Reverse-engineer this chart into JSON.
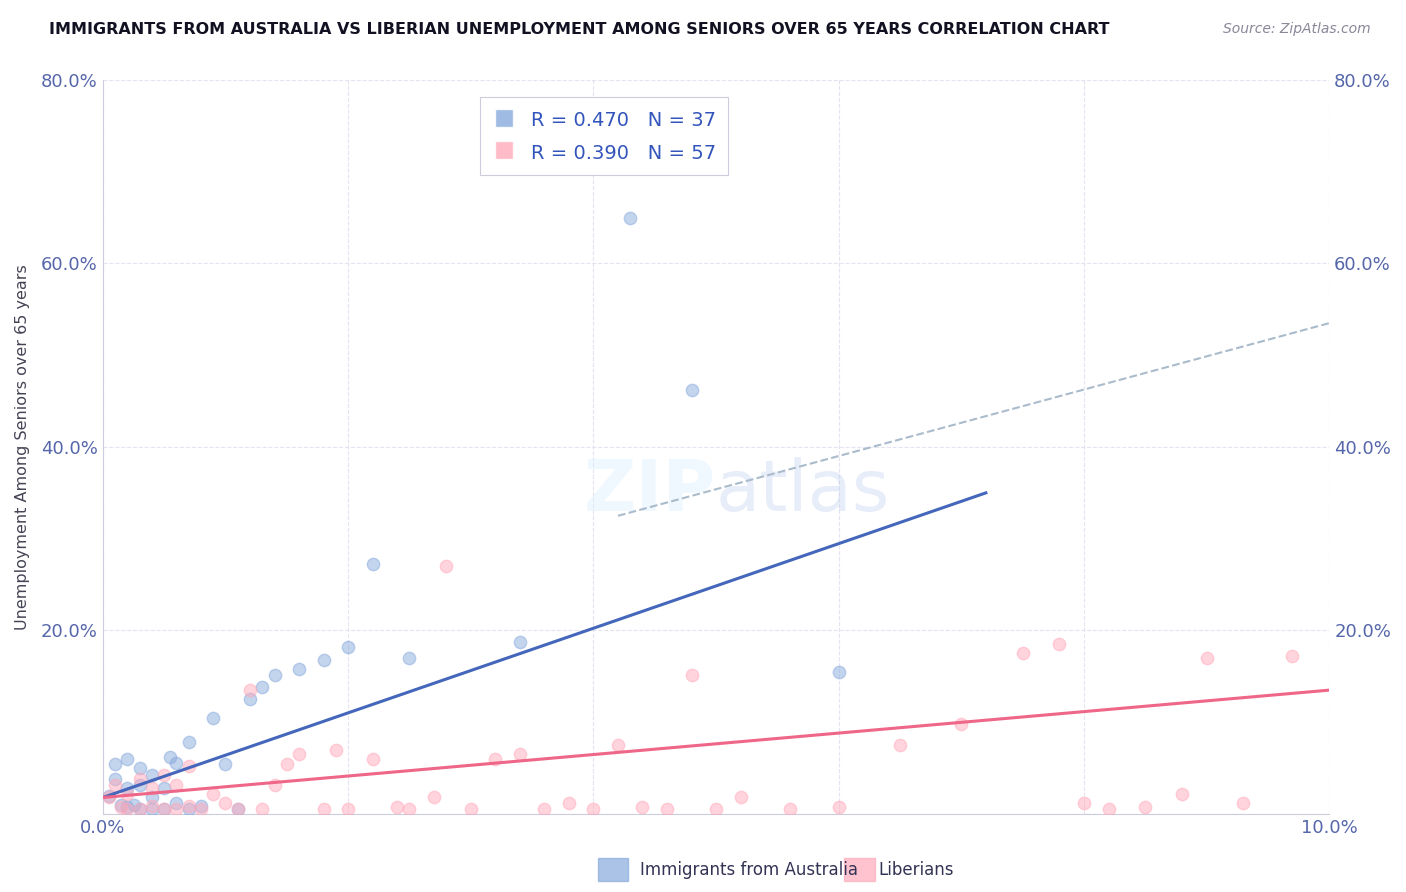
{
  "title": "IMMIGRANTS FROM AUSTRALIA VS LIBERIAN UNEMPLOYMENT AMONG SENIORS OVER 65 YEARS CORRELATION CHART",
  "source": "Source: ZipAtlas.com",
  "ylabel": "Unemployment Among Seniors over 65 years",
  "legend_label1": "Immigrants from Australia",
  "legend_label2": "Liberians",
  "R1": 0.47,
  "N1": 37,
  "R2": 0.39,
  "N2": 57,
  "color_blue_scatter": "#88AADD",
  "color_pink_scatter": "#FFAABB",
  "color_blue_line": "#4466BB",
  "color_pink_line": "#EE6688",
  "color_dashed": "#AABBCC",
  "xlim": [
    0.0,
    0.1
  ],
  "ylim": [
    0.0,
    0.8
  ],
  "x_ticks": [
    0.0,
    0.02,
    0.04,
    0.06,
    0.08,
    0.1
  ],
  "x_tick_labels": [
    "0.0%",
    "",
    "",
    "",
    "",
    "10.0%"
  ],
  "y_ticks": [
    0.0,
    0.2,
    0.4,
    0.6,
    0.8
  ],
  "y_tick_labels_left": [
    "",
    "20.0%",
    "40.0%",
    "60.0%",
    "80.0%"
  ],
  "y_tick_labels_right": [
    "",
    "20.0%",
    "40.0%",
    "60.0%",
    "80.0%"
  ],
  "blue_line_x": [
    0.0,
    0.072
  ],
  "blue_line_y": [
    0.018,
    0.35
  ],
  "pink_line_x": [
    0.0,
    0.1
  ],
  "pink_line_y": [
    0.018,
    0.135
  ],
  "dashed_line_x": [
    0.042,
    0.1
  ],
  "dashed_line_y": [
    0.325,
    0.535
  ],
  "blue_points_x": [
    0.0005,
    0.001,
    0.001,
    0.0015,
    0.002,
    0.002,
    0.002,
    0.0025,
    0.003,
    0.003,
    0.003,
    0.004,
    0.004,
    0.004,
    0.005,
    0.005,
    0.0055,
    0.006,
    0.006,
    0.007,
    0.007,
    0.008,
    0.009,
    0.01,
    0.011,
    0.012,
    0.013,
    0.014,
    0.016,
    0.018,
    0.02,
    0.022,
    0.025,
    0.034,
    0.043,
    0.048,
    0.06
  ],
  "blue_points_y": [
    0.02,
    0.038,
    0.055,
    0.01,
    0.008,
    0.028,
    0.06,
    0.01,
    0.005,
    0.032,
    0.05,
    0.005,
    0.018,
    0.042,
    0.005,
    0.028,
    0.062,
    0.012,
    0.056,
    0.005,
    0.078,
    0.009,
    0.105,
    0.055,
    0.005,
    0.125,
    0.138,
    0.152,
    0.158,
    0.168,
    0.182,
    0.272,
    0.17,
    0.188,
    0.65,
    0.462,
    0.155
  ],
  "pink_points_x": [
    0.0005,
    0.001,
    0.0015,
    0.002,
    0.002,
    0.003,
    0.003,
    0.004,
    0.004,
    0.005,
    0.005,
    0.006,
    0.006,
    0.007,
    0.007,
    0.008,
    0.009,
    0.01,
    0.011,
    0.012,
    0.013,
    0.014,
    0.015,
    0.016,
    0.018,
    0.019,
    0.02,
    0.022,
    0.024,
    0.025,
    0.027,
    0.028,
    0.03,
    0.032,
    0.034,
    0.036,
    0.038,
    0.04,
    0.042,
    0.044,
    0.046,
    0.048,
    0.05,
    0.052,
    0.056,
    0.06,
    0.065,
    0.07,
    0.075,
    0.078,
    0.08,
    0.082,
    0.085,
    0.088,
    0.09,
    0.093,
    0.097
  ],
  "pink_points_y": [
    0.018,
    0.032,
    0.008,
    0.005,
    0.022,
    0.005,
    0.038,
    0.009,
    0.028,
    0.005,
    0.042,
    0.005,
    0.032,
    0.009,
    0.052,
    0.005,
    0.022,
    0.012,
    0.005,
    0.135,
    0.005,
    0.032,
    0.055,
    0.065,
    0.005,
    0.07,
    0.005,
    0.06,
    0.008,
    0.005,
    0.018,
    0.27,
    0.005,
    0.06,
    0.065,
    0.005,
    0.012,
    0.005,
    0.075,
    0.008,
    0.005,
    0.152,
    0.005,
    0.018,
    0.005,
    0.008,
    0.075,
    0.098,
    0.175,
    0.185,
    0.012,
    0.005,
    0.008,
    0.022,
    0.17,
    0.012,
    0.172
  ]
}
